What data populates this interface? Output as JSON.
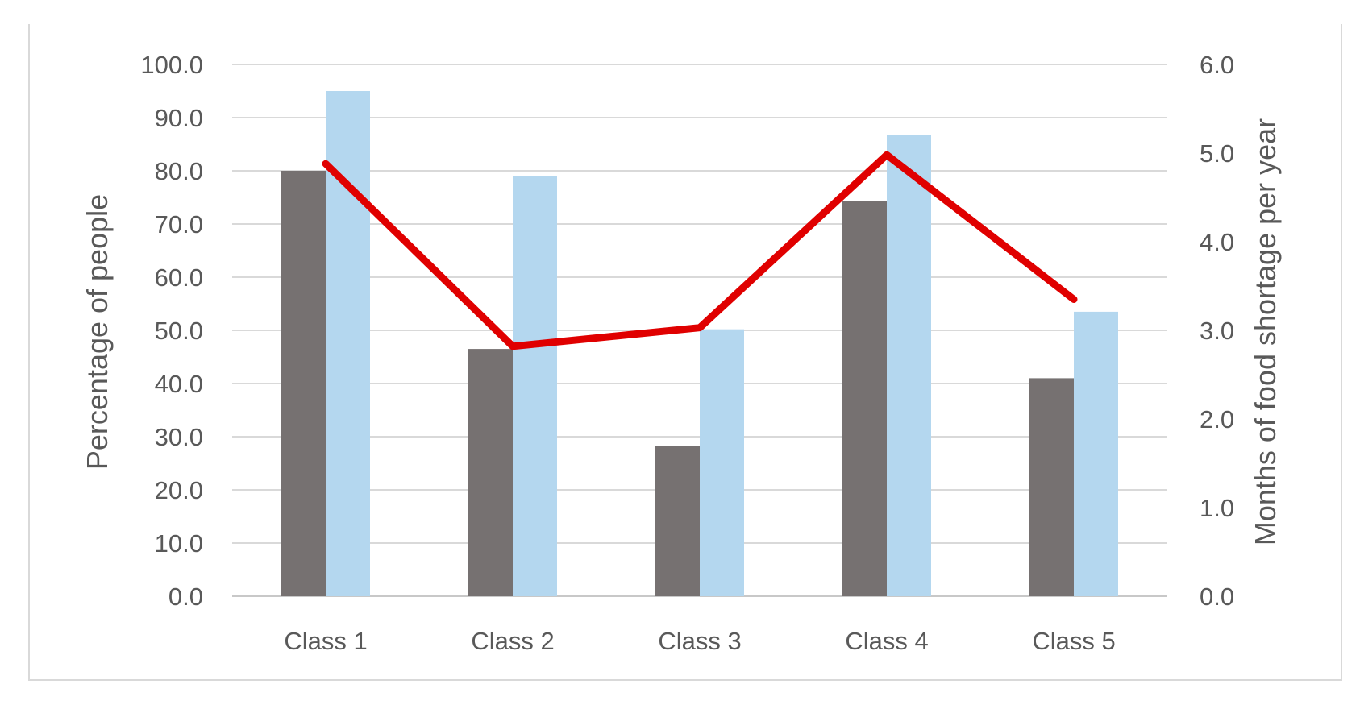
{
  "chart_data": {
    "type": "bar",
    "categories": [
      "Class 1",
      "Class 2",
      "Class 3",
      "Class 4",
      "Class 5"
    ],
    "series": [
      {
        "type": "bar",
        "axis": "left",
        "color": "#767171",
        "values": [
          80.0,
          46.5,
          28.3,
          74.3,
          41.0
        ]
      },
      {
        "type": "bar",
        "axis": "left",
        "color": "#b4d7ef",
        "values": [
          95.0,
          79.0,
          50.2,
          86.7,
          53.5
        ]
      },
      {
        "type": "line",
        "axis": "right",
        "color": "#e00000",
        "values": [
          4.88,
          2.82,
          3.03,
          4.98,
          3.35
        ]
      }
    ],
    "y_left": {
      "label": "Percentage of people",
      "ylim": [
        0,
        100
      ],
      "ticks": [
        "0.0",
        "10.0",
        "20.0",
        "30.0",
        "40.0",
        "50.0",
        "60.0",
        "70.0",
        "80.0",
        "90.0",
        "100.0"
      ]
    },
    "y_right": {
      "label": "Months of food shortage per year",
      "ylim": [
        0,
        6
      ],
      "ticks": [
        "0.0",
        "1.0",
        "2.0",
        "3.0",
        "4.0",
        "5.0",
        "6.0"
      ]
    },
    "grid": true,
    "legend": "none"
  }
}
